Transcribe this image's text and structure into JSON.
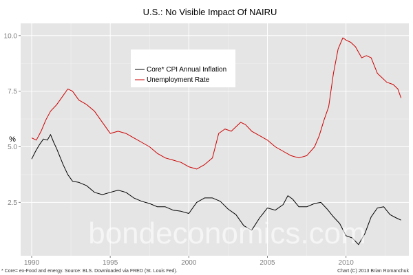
{
  "chart_data": {
    "type": "line",
    "title": "U.S.: No Visible Impact Of NAIRU",
    "xlabel": "",
    "ylabel": "%",
    "xlim": [
      1989.3,
      2014.0
    ],
    "ylim": [
      0.1,
      10.55
    ],
    "x_ticks": [
      1990,
      1995,
      2000,
      2005,
      2010
    ],
    "x_tick_labels": [
      "1990",
      "1995",
      "2000",
      "2005",
      "2010"
    ],
    "y_ticks": [
      2.5,
      5.0,
      7.5,
      10.0
    ],
    "y_tick_labels": [
      "2.5",
      "5.0",
      "7.5",
      "10.0"
    ],
    "grid": true,
    "legend_position": "top-center",
    "series": [
      {
        "name": "Core* CPI Annual Inflation",
        "color": "#000000",
        "x": [
          1990.0,
          1990.25,
          1990.5,
          1990.75,
          1991.0,
          1991.2,
          1991.4,
          1991.6,
          1991.8,
          1992.0,
          1992.3,
          1992.6,
          1993.0,
          1993.5,
          1994.0,
          1994.5,
          1995.0,
          1995.5,
          1996.0,
          1996.5,
          1997.0,
          1997.5,
          1998.0,
          1998.5,
          1999.0,
          1999.5,
          2000.0,
          2000.5,
          2001.0,
          2001.5,
          2002.0,
          2002.5,
          2003.0,
          2003.5,
          2004.0,
          2004.5,
          2005.0,
          2005.5,
          2006.0,
          2006.3,
          2006.6,
          2007.0,
          2007.5,
          2008.0,
          2008.4,
          2008.8,
          2009.2,
          2009.6,
          2010.0,
          2010.4,
          2010.8,
          2011.2,
          2011.6,
          2012.0,
          2012.4,
          2012.8,
          2013.2,
          2013.5
        ],
        "values": [
          4.45,
          4.8,
          5.1,
          5.35,
          5.3,
          5.55,
          5.2,
          4.9,
          4.55,
          4.2,
          3.75,
          3.45,
          3.4,
          3.25,
          2.95,
          2.85,
          2.95,
          3.05,
          2.95,
          2.7,
          2.55,
          2.45,
          2.3,
          2.3,
          2.15,
          2.1,
          2.0,
          2.5,
          2.7,
          2.7,
          2.55,
          2.2,
          1.95,
          1.45,
          1.25,
          1.8,
          2.25,
          2.15,
          2.4,
          2.8,
          2.65,
          2.3,
          2.3,
          2.45,
          2.5,
          2.2,
          1.85,
          1.55,
          1.0,
          0.9,
          0.6,
          1.1,
          1.85,
          2.25,
          2.3,
          1.95,
          1.8,
          1.7
        ]
      },
      {
        "name": "Unemployment Rate",
        "color": "#cc0000",
        "x": [
          1990.0,
          1990.3,
          1990.6,
          1990.9,
          1991.2,
          1991.6,
          1992.0,
          1992.3,
          1992.6,
          1993.0,
          1993.5,
          1994.0,
          1994.5,
          1995.0,
          1995.5,
          1996.0,
          1996.5,
          1997.0,
          1997.5,
          1998.0,
          1998.5,
          1999.0,
          1999.5,
          2000.0,
          2000.5,
          2001.0,
          2001.5,
          2001.9,
          2002.3,
          2002.7,
          2003.0,
          2003.3,
          2003.6,
          2004.0,
          2004.5,
          2005.0,
          2005.5,
          2006.0,
          2006.5,
          2007.0,
          2007.5,
          2008.0,
          2008.3,
          2008.6,
          2008.9,
          2009.2,
          2009.5,
          2009.8,
          2010.0,
          2010.3,
          2010.6,
          2011.0,
          2011.3,
          2011.6,
          2012.0,
          2012.3,
          2012.6,
          2013.0,
          2013.3,
          2013.5
        ],
        "values": [
          5.4,
          5.3,
          5.7,
          6.2,
          6.6,
          6.9,
          7.3,
          7.6,
          7.5,
          7.1,
          6.9,
          6.6,
          6.1,
          5.6,
          5.7,
          5.6,
          5.4,
          5.2,
          5.0,
          4.7,
          4.5,
          4.4,
          4.3,
          4.1,
          4.0,
          4.2,
          4.5,
          5.6,
          5.8,
          5.7,
          5.9,
          6.1,
          6.0,
          5.7,
          5.5,
          5.3,
          5.0,
          4.8,
          4.6,
          4.5,
          4.6,
          5.0,
          5.5,
          6.2,
          6.8,
          8.3,
          9.4,
          9.9,
          9.8,
          9.7,
          9.5,
          9.0,
          9.1,
          9.0,
          8.3,
          8.1,
          7.9,
          7.8,
          7.6,
          7.2
        ]
      }
    ],
    "annotations": {
      "watermark": "bondeconomics.com",
      "source_note": "* Core= ex-Food and energy. Source: BLS. Downloaded via FRED (St. Louis Fed).",
      "credit": "Chart (C) 2013 Brian Romanchuk"
    }
  }
}
